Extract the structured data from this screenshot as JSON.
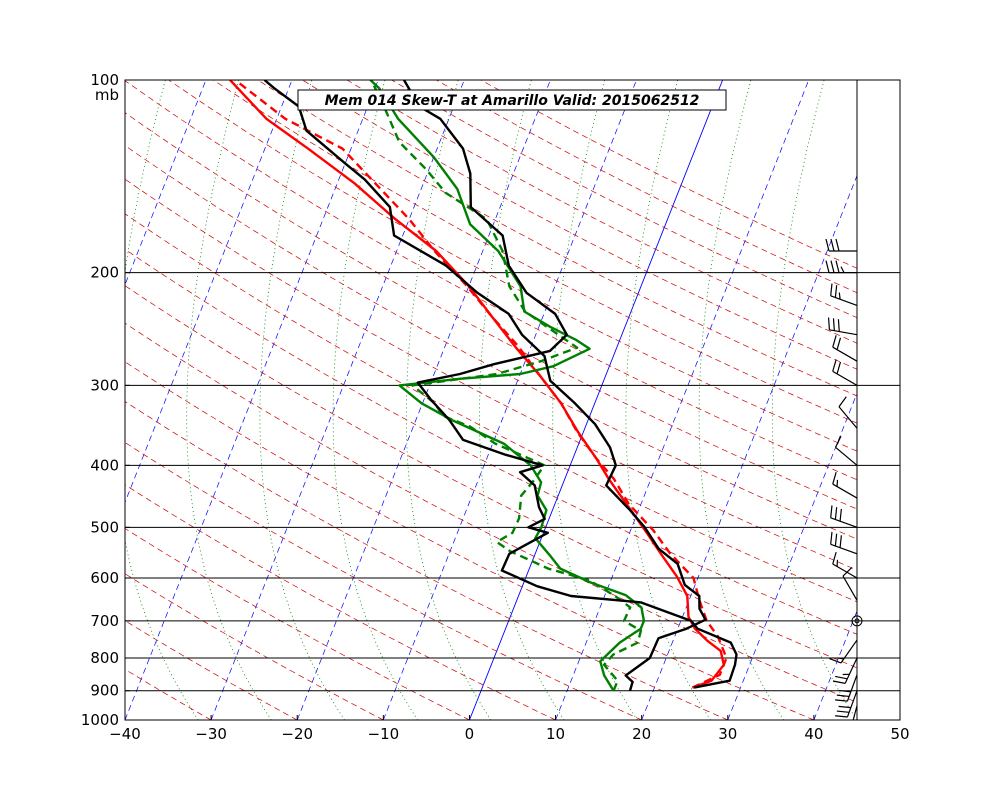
{
  "chart_data": {
    "type": "line",
    "subtype": "skew-t",
    "title": "Mem 014  Skew-T at Amarillo   Valid: 2015062512",
    "xlim": [
      -40,
      50
    ],
    "x_ticks": [
      "−40",
      "−30",
      "−20",
      "−10",
      "0",
      "10",
      "20",
      "30",
      "40",
      "50"
    ],
    "y_ticks": [
      {
        "p": 100,
        "label": "100"
      },
      {
        "p": 200,
        "label": "200"
      },
      {
        "p": 300,
        "label": "300"
      },
      {
        "p": 400,
        "label": "400"
      },
      {
        "p": 500,
        "label": "500"
      },
      {
        "p": 600,
        "label": "600"
      },
      {
        "p": 700,
        "label": "700"
      },
      {
        "p": 800,
        "label": "800"
      },
      {
        "p": 900,
        "label": "900"
      },
      {
        "p": 1000,
        "label": "1000"
      }
    ],
    "y_unit": "mb",
    "ylim": [
      1000,
      100
    ],
    "y_scale": "log",
    "colors": {
      "temperature": "#ff0000",
      "dewpoint": "#008000",
      "observed": "#000000",
      "isotherm": "#0000ff",
      "dry_adiabat": "#ff0000",
      "mixing_ratio": "#008000"
    },
    "series": [
      {
        "role": "forecast-temperature",
        "style": "solid",
        "color": "#ff0000",
        "points": [
          [
            890,
            24.4
          ],
          [
            868,
            26.3
          ],
          [
            820,
            27.0
          ],
          [
            780,
            26.0
          ],
          [
            752,
            24.0
          ],
          [
            720,
            22.0
          ],
          [
            690,
            20.7
          ],
          [
            640,
            19.6
          ],
          [
            597,
            17.5
          ],
          [
            550,
            14.6
          ],
          [
            510,
            12.0
          ],
          [
            470,
            9.1
          ],
          [
            420,
            5.1
          ],
          [
            390,
            2.7
          ],
          [
            355,
            -0.6
          ],
          [
            320,
            -3.9
          ],
          [
            290,
            -7.6
          ],
          [
            262,
            -11.7
          ],
          [
            235,
            -15.8
          ],
          [
            210,
            -20.0
          ],
          [
            185,
            -25.4
          ],
          [
            165,
            -31.6
          ],
          [
            145,
            -38.0
          ],
          [
            128,
            -45.0
          ],
          [
            115,
            -51.2
          ],
          [
            100,
            -57.2
          ]
        ]
      },
      {
        "role": "forecast-temperature",
        "style": "dashed",
        "color": "#ff0000",
        "points": [
          [
            890,
            24.4
          ],
          [
            850,
            27.0
          ],
          [
            800,
            27.0
          ],
          [
            740,
            25.0
          ],
          [
            700,
            23.0
          ],
          [
            650,
            21.2
          ],
          [
            600,
            19.5
          ],
          [
            550,
            15.7
          ],
          [
            505,
            12.6
          ],
          [
            460,
            8.6
          ],
          [
            420,
            5.7
          ],
          [
            390,
            2.7
          ],
          [
            355,
            -0.7
          ],
          [
            320,
            -3.9
          ],
          [
            290,
            -7.6
          ],
          [
            260,
            -11.6
          ],
          [
            235,
            -15.8
          ],
          [
            210,
            -20.2
          ],
          [
            185,
            -25.6
          ],
          [
            165,
            -30.0
          ],
          [
            145,
            -35.6
          ],
          [
            128,
            -41.0
          ],
          [
            115,
            -49.0
          ],
          [
            100,
            -56.6
          ]
        ]
      },
      {
        "role": "forecast-dewpoint",
        "style": "solid",
        "color": "#008000",
        "points": [
          [
            900,
            15.4
          ],
          [
            852,
            13.6
          ],
          [
            810,
            12.5
          ],
          [
            790,
            13.0
          ],
          [
            757,
            13.9
          ],
          [
            720,
            15.7
          ],
          [
            700,
            15.7
          ],
          [
            667,
            14.8
          ],
          [
            638,
            12.4
          ],
          [
            610,
            7.8
          ],
          [
            580,
            3.6
          ],
          [
            552,
            1.7
          ],
          [
            520,
            -0.7
          ],
          [
            500,
            -0.5
          ],
          [
            470,
            -0.7
          ],
          [
            446,
            -2.4
          ],
          [
            425,
            -2.6
          ],
          [
            400,
            -4.6
          ],
          [
            370,
            -8.7
          ],
          [
            340,
            -15.8
          ],
          [
            320,
            -20.1
          ],
          [
            300,
            -23.5
          ],
          [
            293,
            -16.8
          ],
          [
            288,
            -10.0
          ],
          [
            280,
            -6.5
          ],
          [
            263,
            -3.1
          ],
          [
            255,
            -5.0
          ],
          [
            243,
            -8.7
          ],
          [
            230,
            -12.4
          ],
          [
            210,
            -14.0
          ],
          [
            185,
            -18.2
          ],
          [
            168,
            -22.7
          ],
          [
            148,
            -25.8
          ],
          [
            132,
            -30.0
          ],
          [
            115,
            -35.9
          ],
          [
            103,
            -39.5
          ],
          [
            100,
            -40.9
          ]
        ]
      },
      {
        "role": "forecast-dewpoint",
        "style": "dashed",
        "color": "#008000",
        "points": [
          [
            900,
            15.4
          ],
          [
            868,
            15.4
          ],
          [
            820,
            13.1
          ],
          [
            790,
            13.7
          ],
          [
            757,
            16.0
          ],
          [
            725,
            15.8
          ],
          [
            700,
            13.4
          ],
          [
            667,
            13.5
          ],
          [
            640,
            11.2
          ],
          [
            605,
            7.5
          ],
          [
            580,
            2.2
          ],
          [
            545,
            -3.0
          ],
          [
            527,
            -5.0
          ],
          [
            510,
            -3.6
          ],
          [
            484,
            -3.5
          ],
          [
            446,
            -4.3
          ],
          [
            425,
            -3.6
          ],
          [
            400,
            -3.0
          ],
          [
            370,
            -9.7
          ],
          [
            348,
            -13.4
          ],
          [
            335,
            -17.0
          ],
          [
            320,
            -18.6
          ],
          [
            300,
            -22.0
          ],
          [
            288,
            -12.7
          ],
          [
            275,
            -8.2
          ],
          [
            262,
            -4.6
          ],
          [
            247,
            -8.1
          ],
          [
            230,
            -12.3
          ],
          [
            210,
            -15.3
          ],
          [
            185,
            -17.7
          ],
          [
            165,
            -21.0
          ],
          [
            150,
            -27.0
          ],
          [
            138,
            -30.3
          ],
          [
            125,
            -34.7
          ],
          [
            110,
            -38.1
          ],
          [
            100,
            -40.8
          ]
        ]
      },
      {
        "role": "observed-temperature",
        "style": "solid",
        "color": "#000000",
        "points": [
          [
            900,
            17.3
          ],
          [
            872,
            17.2
          ],
          [
            852,
            16.1
          ],
          [
            800,
            18.1
          ],
          [
            745,
            18.2
          ],
          [
            720,
            21.0
          ],
          [
            697,
            22.8
          ],
          [
            670,
            21.6
          ],
          [
            640,
            21.0
          ],
          [
            615,
            18.8
          ],
          [
            570,
            17.0
          ],
          [
            540,
            14.1
          ],
          [
            500,
            11.5
          ],
          [
            470,
            9.0
          ],
          [
            430,
            5.1
          ],
          [
            400,
            5.3
          ],
          [
            375,
            3.8
          ],
          [
            345,
            1.0
          ],
          [
            320,
            -2.3
          ],
          [
            295,
            -6.2
          ],
          [
            270,
            -8.0
          ],
          [
            250,
            -11.6
          ],
          [
            232,
            -14.1
          ],
          [
            215,
            -18.7
          ],
          [
            195,
            -23.6
          ],
          [
            175,
            -31.0
          ],
          [
            158,
            -32.8
          ],
          [
            143,
            -37.0
          ],
          [
            135,
            -40.0
          ],
          [
            120,
            -46.0
          ],
          [
            110,
            -48.0
          ],
          [
            103,
            -51.7
          ],
          [
            100,
            -53.2
          ]
        ]
      },
      {
        "role": "observed-dewpoint",
        "style": "solid",
        "color": "#000000",
        "points": [
          [
            890,
            24.6
          ],
          [
            868,
            28.4
          ],
          [
            820,
            28.3
          ],
          [
            790,
            28.0
          ],
          [
            757,
            26.8
          ],
          [
            720,
            22.3
          ],
          [
            700,
            21.2
          ],
          [
            655,
            14.5
          ],
          [
            640,
            6.1
          ],
          [
            618,
            1.7
          ],
          [
            584,
            -3.1
          ],
          [
            550,
            -3.0
          ],
          [
            510,
            0.5
          ],
          [
            500,
            -2.0
          ],
          [
            485,
            -0.5
          ],
          [
            465,
            -1.7
          ],
          [
            430,
            -3.2
          ],
          [
            410,
            -5.5
          ],
          [
            400,
            -3.2
          ],
          [
            385,
            -8.0
          ],
          [
            365,
            -13.6
          ],
          [
            340,
            -16.1
          ],
          [
            315,
            -19.3
          ],
          [
            297,
            -21.5
          ],
          [
            288,
            -17.0
          ],
          [
            278,
            -13.5
          ],
          [
            265,
            -7.6
          ],
          [
            250,
            -6.4
          ],
          [
            232,
            -8.7
          ],
          [
            215,
            -13.0
          ],
          [
            195,
            -16.3
          ],
          [
            175,
            -18.4
          ],
          [
            158,
            -23.4
          ],
          [
            140,
            -25.0
          ],
          [
            128,
            -27.0
          ],
          [
            115,
            -31.0
          ],
          [
            110,
            -34.0
          ],
          [
            100,
            -37.0
          ]
        ]
      }
    ],
    "wind_profile": [
      {
        "p": 1000,
        "dir": 200,
        "spd": 15
      },
      {
        "p": 950,
        "dir": 195,
        "spd": 25
      },
      {
        "p": 900,
        "dir": 200,
        "spd": 30
      },
      {
        "p": 850,
        "dir": 200,
        "spd": 30
      },
      {
        "p": 800,
        "dir": 205,
        "spd": 25
      },
      {
        "p": 750,
        "dir": 215,
        "spd": 15
      },
      {
        "p": 700,
        "dir": 0,
        "spd": 0
      },
      {
        "p": 650,
        "dir": 330,
        "spd": 10
      },
      {
        "p": 600,
        "dir": 300,
        "spd": 15
      },
      {
        "p": 550,
        "dir": 290,
        "spd": 30
      },
      {
        "p": 500,
        "dir": 290,
        "spd": 30
      },
      {
        "p": 450,
        "dir": 300,
        "spd": 15
      },
      {
        "p": 400,
        "dir": 310,
        "spd": 10
      },
      {
        "p": 350,
        "dir": 320,
        "spd": 10
      },
      {
        "p": 300,
        "dir": 300,
        "spd": 20
      },
      {
        "p": 275,
        "dir": 300,
        "spd": 20
      },
      {
        "p": 250,
        "dir": 280,
        "spd": 30
      },
      {
        "p": 225,
        "dir": 290,
        "spd": 25
      },
      {
        "p": 200,
        "dir": 270,
        "spd": 35
      },
      {
        "p": 185,
        "dir": 270,
        "spd": 30
      }
    ]
  }
}
